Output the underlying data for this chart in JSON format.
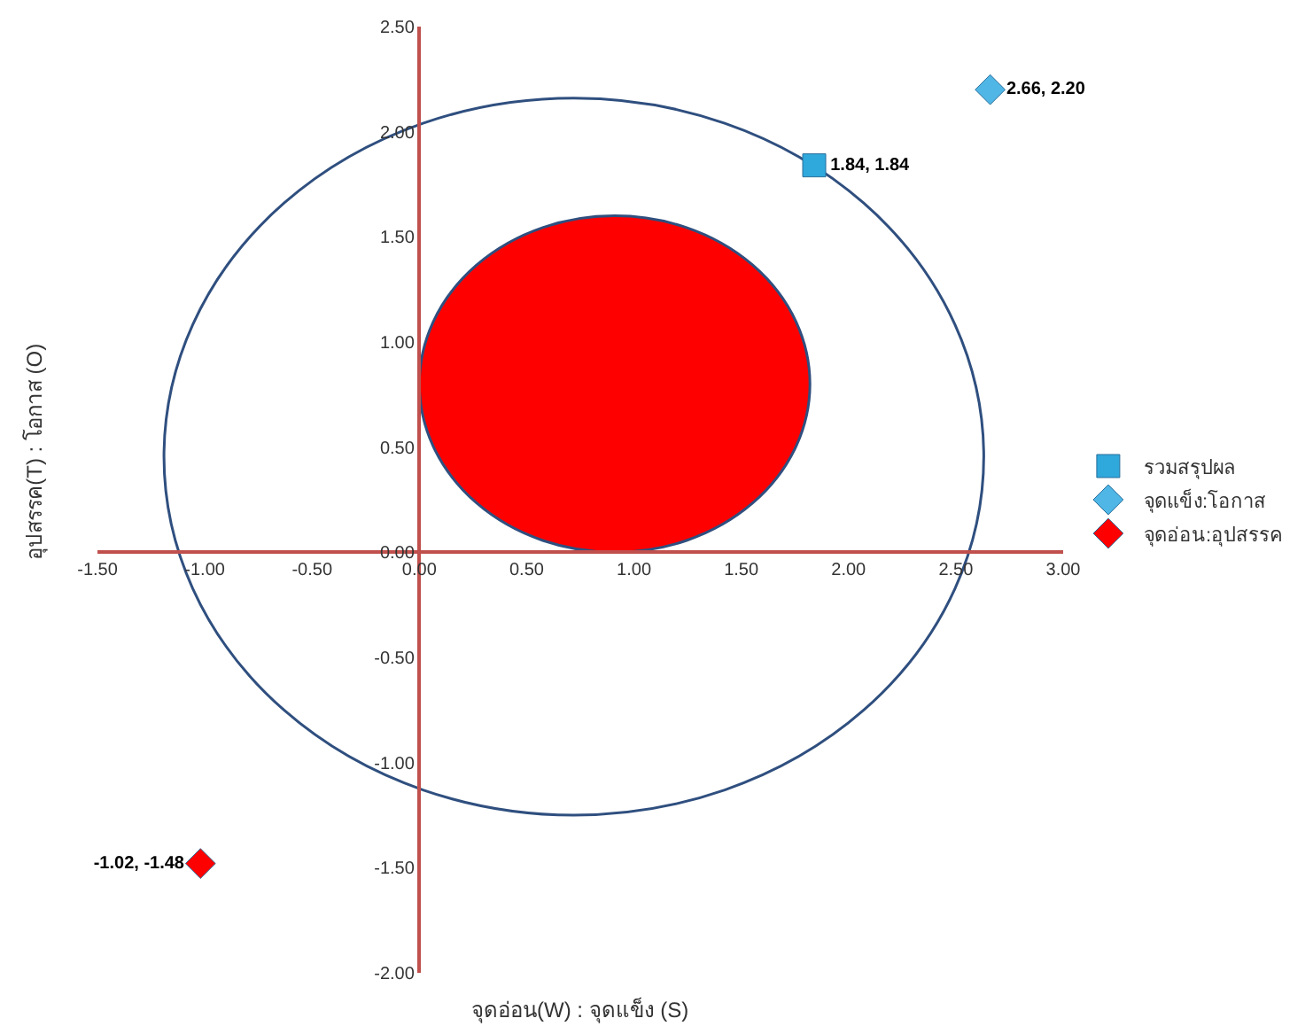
{
  "chart_data": {
    "type": "scatter",
    "xlabel": "จุดอ่อน(W) : จุดแข็ง (S)",
    "ylabel": "อุปสรรค(T) : โอกาส (O)",
    "xlim": [
      -1.5,
      3
    ],
    "xticks": [
      {
        "value": -1.5,
        "label": "-1.50"
      },
      {
        "value": -1,
        "label": "-1.00"
      },
      {
        "value": -0.5,
        "label": "-0.50"
      },
      {
        "value": 0,
        "label": "0.00"
      },
      {
        "value": 0.5,
        "label": "0.50"
      },
      {
        "value": 1,
        "label": "1.00"
      },
      {
        "value": 1.5,
        "label": "1.50"
      },
      {
        "value": 2,
        "label": "2.00"
      },
      {
        "value": 2.5,
        "label": "2.50"
      },
      {
        "value": 3,
        "label": "3.00"
      }
    ],
    "ylim": [
      -2,
      2.5
    ],
    "yticks": [
      {
        "value": -2,
        "label": "-2.00"
      },
      {
        "value": -1.5,
        "label": "-1.50"
      },
      {
        "value": -1,
        "label": "-1.00"
      },
      {
        "value": -0.5,
        "label": "-0.50"
      },
      {
        "value": 0,
        "label": "0.00"
      },
      {
        "value": 0.5,
        "label": "0.50"
      },
      {
        "value": 1,
        "label": "1.00"
      },
      {
        "value": 1.5,
        "label": "1.50"
      },
      {
        "value": 2,
        "label": "2.00"
      },
      {
        "value": 2.5,
        "label": "2.50"
      }
    ],
    "series": [
      {
        "name": "รวมสรุปผล",
        "color": "#2fa8dc",
        "marker": "square",
        "x": [
          1.84
        ],
        "values": [
          1.84
        ],
        "value_labels": [
          "1.84, 1.84"
        ]
      },
      {
        "name": "จุดแข็ง:โอกาส",
        "color": "#4fb6e6",
        "marker": "diamond",
        "x": [
          2.66
        ],
        "values": [
          2.2
        ],
        "value_labels": [
          "2.66, 2.20"
        ]
      },
      {
        "name": "จุดอ่อน:อุปสรรค",
        "color": "#ff0000",
        "marker": "diamond",
        "x": [
          -1.02
        ],
        "values": [
          -1.48
        ],
        "value_labels": [
          "-1.02, -1.48"
        ]
      }
    ],
    "grid": false,
    "legend": "right"
  }
}
